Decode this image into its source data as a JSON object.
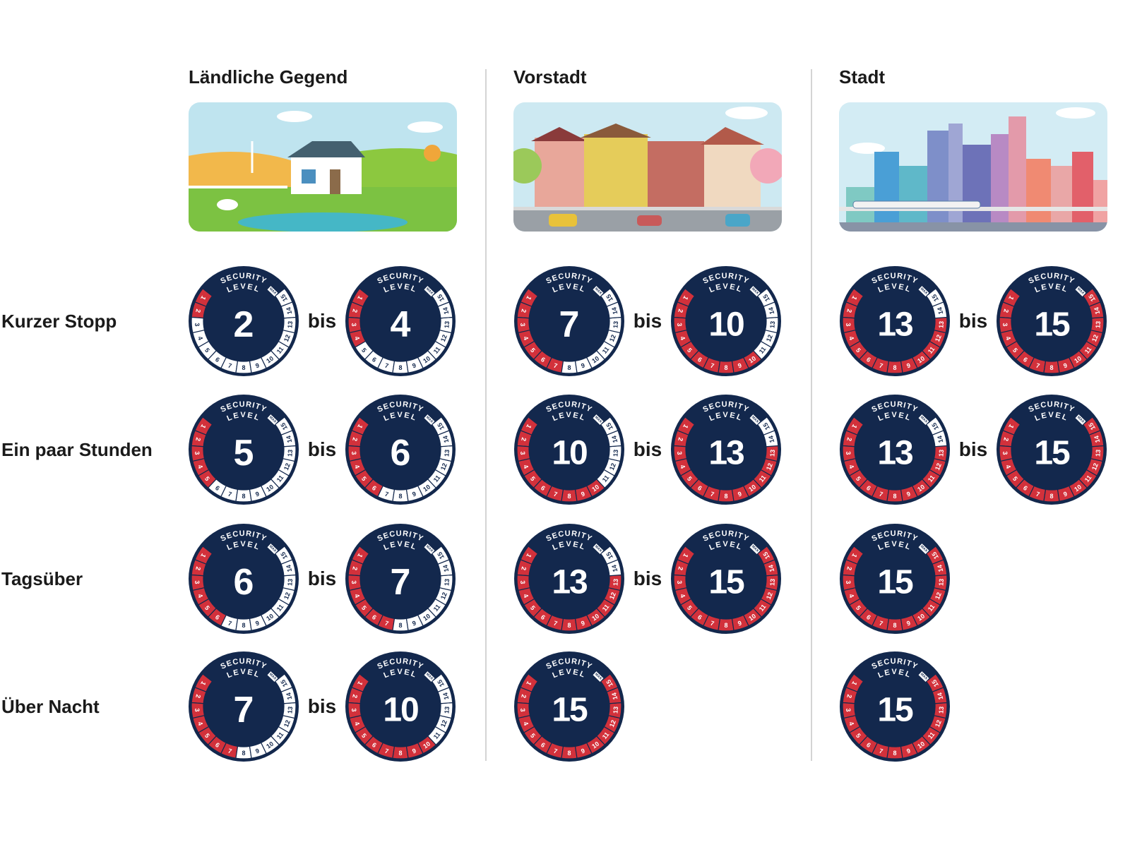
{
  "columns": [
    {
      "title": "Ländliche Gegend",
      "scene": "rural"
    },
    {
      "title": "Vorstadt",
      "scene": "suburb"
    },
    {
      "title": "Stadt",
      "scene": "city"
    }
  ],
  "rows": [
    {
      "label": "Kurzer Stopp",
      "levels": [
        [
          2,
          4
        ],
        [
          7,
          10
        ],
        [
          13,
          15
        ]
      ]
    },
    {
      "label": "Ein paar Stunden",
      "levels": [
        [
          5,
          6
        ],
        [
          10,
          13
        ],
        [
          13,
          15
        ]
      ]
    },
    {
      "label": "Tagsüber",
      "levels": [
        [
          6,
          7
        ],
        [
          13,
          15
        ],
        [
          15
        ]
      ]
    },
    {
      "label": "Über Nacht",
      "levels": [
        [
          7,
          10
        ],
        [
          15
        ],
        [
          15
        ]
      ]
    }
  ],
  "connector": "bis",
  "badge": {
    "top_text": "SECURITY",
    "sub_text": "LEVEL",
    "max_text": "MAX",
    "segments": 15
  },
  "colors": {
    "navy": "#13284d",
    "red": "#d2313b",
    "white": "#ffffff"
  }
}
